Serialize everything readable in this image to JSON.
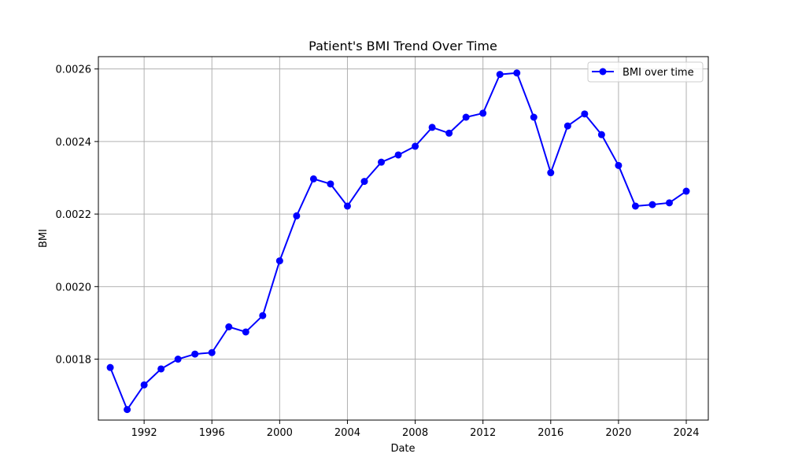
{
  "chart_data": {
    "type": "line",
    "title": "Patient's BMI Trend Over Time",
    "xlabel": "Date",
    "ylabel": "BMI",
    "xlim": [
      1989.3,
      2025.3
    ],
    "ylim": [
      0.001632,
      0.002634
    ],
    "x_ticks": [
      1992,
      1996,
      2000,
      2004,
      2008,
      2012,
      2016,
      2020,
      2024
    ],
    "y_ticks": [
      0.0018,
      0.002,
      0.0022,
      0.0024,
      0.0026
    ],
    "y_tick_labels": [
      "0.0018",
      "0.0020",
      "0.0022",
      "0.0024",
      "0.0026"
    ],
    "grid": true,
    "legend_position": "top-right",
    "colors": {
      "series": "#0000ff",
      "grid": "#b0b0b0",
      "axes": "#000000"
    },
    "x": [
      1990,
      1991,
      1992,
      1993,
      1994,
      1995,
      1996,
      1997,
      1998,
      1999,
      2000,
      2001,
      2002,
      2003,
      2004,
      2005,
      2006,
      2007,
      2008,
      2009,
      2010,
      2011,
      2012,
      2013,
      2014,
      2015,
      2016,
      2017,
      2018,
      2019,
      2020,
      2021,
      2022,
      2023,
      2024
    ],
    "series": [
      {
        "name": "BMI over time",
        "marker": "circle",
        "values": [
          0.001777,
          0.001661,
          0.001729,
          0.001773,
          0.0018,
          0.001814,
          0.001818,
          0.001889,
          0.001875,
          0.00192,
          0.002071,
          0.002195,
          0.002297,
          0.002283,
          0.002222,
          0.00229,
          0.002343,
          0.002363,
          0.002387,
          0.002439,
          0.002423,
          0.002467,
          0.002478,
          0.002585,
          0.002589,
          0.002467,
          0.002314,
          0.002443,
          0.002476,
          0.002419,
          0.002334,
          0.002222,
          0.002226,
          0.002231,
          0.002263
        ]
      }
    ]
  }
}
